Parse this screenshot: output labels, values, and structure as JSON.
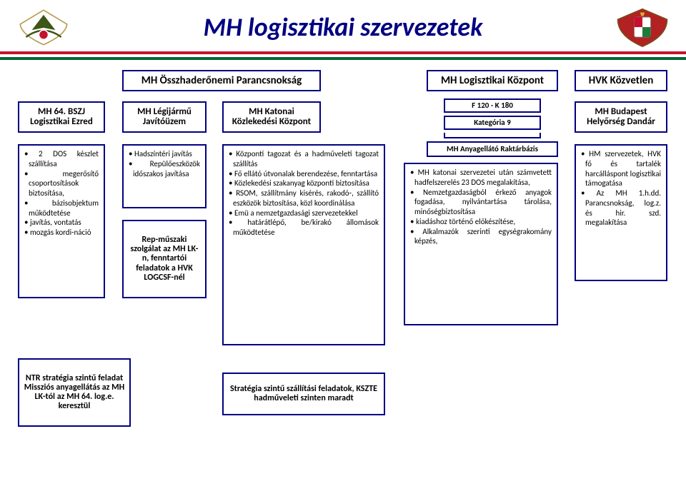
{
  "title": "MH logisztikai szervezetek",
  "colors": {
    "navy": "#000080",
    "red": "#c8102e",
    "green": "#006633",
    "white": "#ffffff",
    "olive": "#3d5517",
    "crest_red": "#b22222",
    "crest_green": "#1e7a3a"
  },
  "top_row": {
    "osszhaderonemi": "MH Összhaderőnemi Parancsnokság",
    "logkozpont": "MH Logisztikai Központ",
    "hvk": "HVK Közvetlen"
  },
  "row2": {
    "ezred": "MH 64. BSZJ Logisztikai Ezred",
    "legijarmu": "MH Légijármű Javítóüzem",
    "katonai": "MH Katonai Közlekedési Központ",
    "f120": "F 120 - K 180",
    "kategoria": "Kategória 9",
    "dandar": "MH Budapest Helyőrség Dandár"
  },
  "anyagellato": "MH Anyagellátó Raktárbázis",
  "details": {
    "col1": [
      "2 DOS készlet szállítása",
      "megerősítő csoportosítások biztosítása,",
      "bázisobjektum működtetése",
      "javítás, vontatás",
      "mozgás kordi-náció"
    ],
    "col2a": [
      "Hadszíntéri javítás",
      "Repülőeszközök időszakos javítása"
    ],
    "col2b": "Rep-műszaki szolgálat az MH LK-n, fenntartói feladatok a HVK LOGCSF-nél",
    "col3": [
      "Központi tagozat és a hadműveleti tagozat szállítás",
      "Fő ellátó útvonalak berendezése, fenntartása",
      "Közlekedési szakanyag központi biztosítása",
      "RSOM, szállítmány kisérés, rakodó-, szállító eszközök biztosítása, közl koordinálása",
      "Emü a nemzetgazdasági szervezetekkel",
      "határátlépő, be/kirakó állomások működtetése"
    ],
    "col4": [
      "MH katonai szervezetei után számvetett hadfelszerelés 23 DOS megalakítása,",
      "Nemzetgazdaságból érkező anyagok fogadása, nyilvántartása tárolása, minőségbiztosítása",
      "kiadáshoz történő előkészítése,",
      "Alkalmazók szerinti egységrakomány képzés,"
    ],
    "col5": [
      "HM szervezetek, HVK fő és tartalék harcálláspont logisztikai támogatása",
      "Az MH 1.h.dd. Parancsnokság, log.z. és hir. szd. megalakítása"
    ]
  },
  "bottom": {
    "ntr": "NTR stratégia szintű feladat Missziós anyagellátás az MH LK-tól az MH 64. log.e. keresztül",
    "strategia": "Stratégia szintű szállítási feladatok, KSZTE hadműveleti szinten maradt"
  },
  "layout": {
    "header_border": "#000080",
    "border_w": 2
  }
}
